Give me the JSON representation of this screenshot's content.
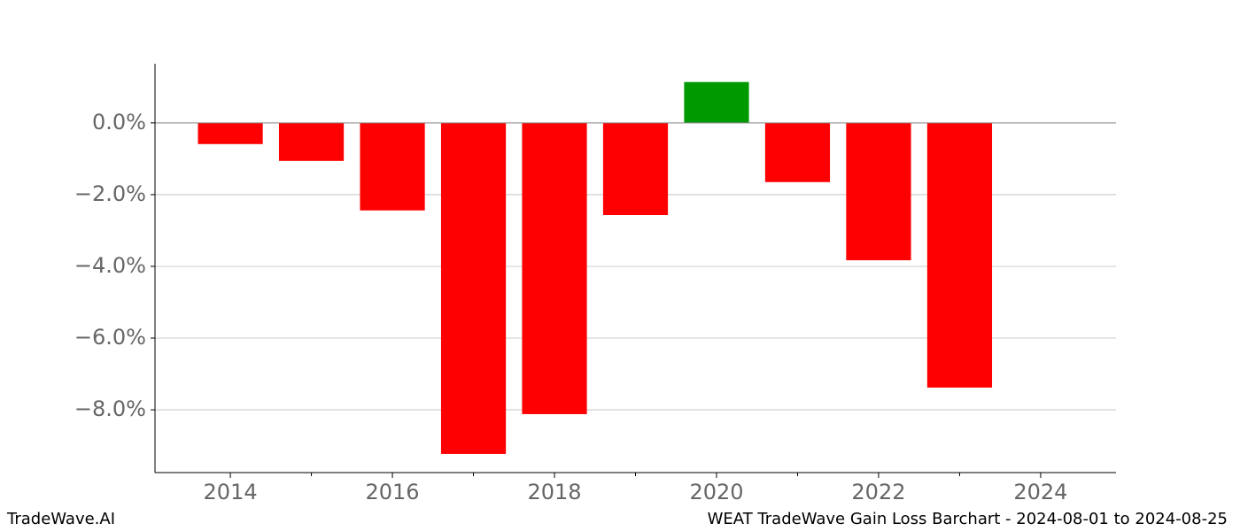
{
  "chart_data": {
    "type": "bar",
    "x": [
      2014,
      2015,
      2016,
      2017,
      2018,
      2019,
      2020,
      2021,
      2022,
      2023
    ],
    "values": [
      -0.59,
      -1.06,
      -2.44,
      -9.23,
      -8.12,
      -2.57,
      1.14,
      -1.65,
      -3.83,
      -7.38
    ],
    "gain_color": "#009900",
    "loss_color": "#ff0000",
    "bar_width": 0.8,
    "xlim": [
      2013.07,
      2024.93
    ],
    "xticks": [
      2014,
      2016,
      2018,
      2020,
      2022,
      2024
    ],
    "xminorticks": [
      2015,
      2017,
      2019,
      2021,
      2023
    ],
    "ylim": [
      -9.75,
      1.65
    ],
    "yticks": [
      {
        "value": 0,
        "label": "0.0%"
      },
      {
        "value": -2,
        "label": "−2.0%"
      },
      {
        "value": -4,
        "label": "−4.0%"
      },
      {
        "value": -6,
        "label": "−6.0%"
      },
      {
        "value": -8,
        "label": "−8.0%"
      }
    ],
    "grid": true,
    "brand": "TradeWave.AI",
    "title": "WEAT TradeWave Gain Loss Barchart - 2024-08-01 to 2024-08-25"
  }
}
